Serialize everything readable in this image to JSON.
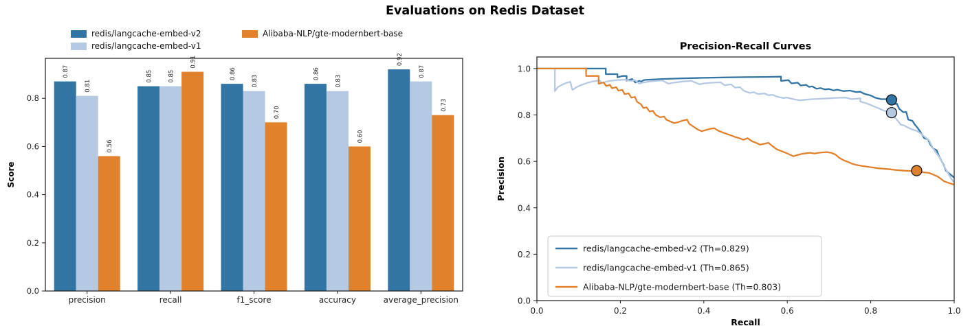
{
  "figure": {
    "title": "Evaluations on Redis Dataset",
    "background": "#ffffff"
  },
  "palette": {
    "v2_blue": "#3274A3",
    "v1_lightblue": "#B6C9E2",
    "gte_orange": "#E1812C",
    "axis_color": "#1a1a1a",
    "text_color": "#262626"
  },
  "fig_legend": {
    "items": [
      {
        "label": "redis/langcache-embed-v2",
        "color": "#3274A3"
      },
      {
        "label": "redis/langcache-embed-v1",
        "color": "#B6C9E2"
      },
      {
        "label": "Alibaba-NLP/gte-modernbert-base",
        "color": "#E1812C"
      }
    ]
  },
  "chart_data": [
    {
      "type": "bar",
      "ylabel": "Score",
      "categories": [
        "precision",
        "recall",
        "f1_score",
        "accuracy",
        "average_precision"
      ],
      "yticks": [
        0.0,
        0.2,
        0.4,
        0.6,
        0.8
      ],
      "ylim": [
        0,
        0.966
      ],
      "grid": false,
      "bar_labels_rotation": 90,
      "series": [
        {
          "name": "redis/langcache-embed-v2",
          "color": "#3274A3",
          "values": [
            0.87,
            0.85,
            0.86,
            0.86,
            0.92
          ]
        },
        {
          "name": "redis/langcache-embed-v1",
          "color": "#B6C9E2",
          "values": [
            0.81,
            0.85,
            0.83,
            0.83,
            0.87
          ]
        },
        {
          "name": "Alibaba-NLP/gte-modernbert-base",
          "color": "#E1812C",
          "values": [
            0.56,
            0.91,
            0.7,
            0.6,
            0.73
          ]
        }
      ]
    },
    {
      "type": "line",
      "title": "Precision-Recall Curves",
      "xlabel": "Recall",
      "ylabel": "Precision",
      "xticks": [
        0.0,
        0.2,
        0.4,
        0.6,
        0.8,
        1.0
      ],
      "yticks": [
        0.0,
        0.2,
        0.4,
        0.6,
        0.8,
        1.0
      ],
      "xlim": [
        0,
        1
      ],
      "ylim": [
        0,
        1.05
      ],
      "grid": false,
      "legend_position": "lower left",
      "series": [
        {
          "name": "redis/langcache-embed-v2",
          "legend": "redis/langcache-embed-v2 (Th=0.829)",
          "threshold": 0.829,
          "color": "#3274A3",
          "marker_point": [
            0.85,
            0.865
          ],
          "points": [
            [
              0,
              1.0
            ],
            [
              0.165,
              1.0
            ],
            [
              0.165,
              0.976
            ],
            [
              0.193,
              0.976
            ],
            [
              0.193,
              0.962
            ],
            [
              0.205,
              0.968
            ],
            [
              0.215,
              0.968
            ],
            [
              0.215,
              0.948
            ],
            [
              0.228,
              0.955
            ],
            [
              0.236,
              0.94
            ],
            [
              0.245,
              0.947
            ],
            [
              0.25,
              0.944
            ],
            [
              0.257,
              0.951
            ],
            [
              0.3,
              0.955
            ],
            [
              0.35,
              0.958
            ],
            [
              0.4,
              0.96
            ],
            [
              0.45,
              0.962
            ],
            [
              0.5,
              0.963
            ],
            [
              0.55,
              0.964
            ],
            [
              0.585,
              0.965
            ],
            [
              0.585,
              0.947
            ],
            [
              0.603,
              0.95
            ],
            [
              0.61,
              0.936
            ],
            [
              0.625,
              0.939
            ],
            [
              0.632,
              0.927
            ],
            [
              0.645,
              0.93
            ],
            [
              0.652,
              0.921
            ],
            [
              0.66,
              0.923
            ],
            [
              0.67,
              0.913
            ],
            [
              0.68,
              0.916
            ],
            [
              0.69,
              0.91
            ],
            [
              0.7,
              0.912
            ],
            [
              0.71,
              0.906
            ],
            [
              0.72,
              0.909
            ],
            [
              0.735,
              0.903
            ],
            [
              0.75,
              0.905
            ],
            [
              0.765,
              0.899
            ],
            [
              0.775,
              0.9
            ],
            [
              0.785,
              0.891
            ],
            [
              0.8,
              0.884
            ],
            [
              0.81,
              0.875
            ],
            [
              0.825,
              0.868
            ],
            [
              0.84,
              0.868
            ],
            [
              0.85,
              0.862
            ],
            [
              0.857,
              0.847
            ],
            [
              0.863,
              0.848
            ],
            [
              0.868,
              0.827
            ],
            [
              0.878,
              0.812
            ],
            [
              0.885,
              0.813
            ],
            [
              0.89,
              0.78
            ],
            [
              0.9,
              0.775
            ],
            [
              0.905,
              0.76
            ],
            [
              0.912,
              0.745
            ],
            [
              0.92,
              0.725
            ],
            [
              0.928,
              0.7
            ],
            [
              0.937,
              0.695
            ],
            [
              0.943,
              0.672
            ],
            [
              0.95,
              0.655
            ],
            [
              0.958,
              0.648
            ],
            [
              0.963,
              0.625
            ],
            [
              0.97,
              0.6
            ],
            [
              0.975,
              0.585
            ],
            [
              0.98,
              0.56
            ],
            [
              0.99,
              0.545
            ],
            [
              1.0,
              0.53
            ]
          ]
        },
        {
          "name": "redis/langcache-embed-v1",
          "legend": "redis/langcache-embed-v1 (Th=0.865)",
          "threshold": 0.865,
          "color": "#B6C9E2",
          "marker_point": [
            0.85,
            0.81
          ],
          "points": [
            [
              0,
              1.0
            ],
            [
              0.043,
              1.0
            ],
            [
              0.043,
              0.903
            ],
            [
              0.05,
              0.92
            ],
            [
              0.06,
              0.93
            ],
            [
              0.07,
              0.938
            ],
            [
              0.08,
              0.943
            ],
            [
              0.085,
              0.908
            ],
            [
              0.095,
              0.92
            ],
            [
              0.105,
              0.928
            ],
            [
              0.12,
              0.938
            ],
            [
              0.135,
              0.945
            ],
            [
              0.15,
              0.949
            ],
            [
              0.155,
              0.938
            ],
            [
              0.165,
              0.943
            ],
            [
              0.175,
              0.947
            ],
            [
              0.19,
              0.95
            ],
            [
              0.21,
              0.952
            ],
            [
              0.225,
              0.947
            ],
            [
              0.235,
              0.95
            ],
            [
              0.245,
              0.935
            ],
            [
              0.255,
              0.94
            ],
            [
              0.27,
              0.944
            ],
            [
              0.285,
              0.947
            ],
            [
              0.3,
              0.949
            ],
            [
              0.315,
              0.935
            ],
            [
              0.33,
              0.94
            ],
            [
              0.35,
              0.944
            ],
            [
              0.37,
              0.947
            ],
            [
              0.39,
              0.932
            ],
            [
              0.4,
              0.936
            ],
            [
              0.42,
              0.939
            ],
            [
              0.44,
              0.941
            ],
            [
              0.45,
              0.928
            ],
            [
              0.465,
              0.932
            ],
            [
              0.475,
              0.918
            ],
            [
              0.487,
              0.92
            ],
            [
              0.495,
              0.905
            ],
            [
              0.51,
              0.895
            ],
            [
              0.52,
              0.898
            ],
            [
              0.53,
              0.89
            ],
            [
              0.545,
              0.893
            ],
            [
              0.555,
              0.885
            ],
            [
              0.565,
              0.887
            ],
            [
              0.575,
              0.879
            ],
            [
              0.59,
              0.873
            ],
            [
              0.6,
              0.875
            ],
            [
              0.615,
              0.868
            ],
            [
              0.63,
              0.863
            ],
            [
              0.645,
              0.866
            ],
            [
              0.66,
              0.868
            ],
            [
              0.68,
              0.87
            ],
            [
              0.7,
              0.872
            ],
            [
              0.72,
              0.874
            ],
            [
              0.74,
              0.875
            ],
            [
              0.755,
              0.868
            ],
            [
              0.765,
              0.87
            ],
            [
              0.775,
              0.872
            ],
            [
              0.775,
              0.858
            ],
            [
              0.79,
              0.85
            ],
            [
              0.8,
              0.843
            ],
            [
              0.81,
              0.835
            ],
            [
              0.82,
              0.828
            ],
            [
              0.83,
              0.82
            ],
            [
              0.84,
              0.815
            ],
            [
              0.85,
              0.81
            ],
            [
              0.857,
              0.79
            ],
            [
              0.865,
              0.775
            ],
            [
              0.872,
              0.758
            ],
            [
              0.88,
              0.755
            ],
            [
              0.89,
              0.745
            ],
            [
              0.9,
              0.737
            ],
            [
              0.91,
              0.732
            ],
            [
              0.92,
              0.72
            ],
            [
              0.93,
              0.705
            ],
            [
              0.94,
              0.69
            ],
            [
              0.947,
              0.665
            ],
            [
              0.955,
              0.64
            ],
            [
              0.962,
              0.625
            ],
            [
              0.97,
              0.6
            ],
            [
              0.977,
              0.575
            ],
            [
              0.985,
              0.55
            ],
            [
              0.993,
              0.525
            ],
            [
              1.0,
              0.51
            ]
          ]
        },
        {
          "name": "Alibaba-NLP/gte-modernbert-base",
          "legend": "Alibaba-NLP/gte-modernbert-base (Th=0.803)",
          "threshold": 0.803,
          "color": "#E1812C",
          "marker_point": [
            0.91,
            0.56
          ],
          "points": [
            [
              0,
              1.0
            ],
            [
              0.118,
              1.0
            ],
            [
              0.118,
              0.968
            ],
            [
              0.148,
              0.968
            ],
            [
              0.148,
              0.935
            ],
            [
              0.16,
              0.94
            ],
            [
              0.166,
              0.925
            ],
            [
              0.175,
              0.93
            ],
            [
              0.18,
              0.915
            ],
            [
              0.19,
              0.92
            ],
            [
              0.195,
              0.905
            ],
            [
              0.205,
              0.908
            ],
            [
              0.21,
              0.89
            ],
            [
              0.22,
              0.893
            ],
            [
              0.226,
              0.875
            ],
            [
              0.235,
              0.878
            ],
            [
              0.24,
              0.857
            ],
            [
              0.25,
              0.845
            ],
            [
              0.255,
              0.83
            ],
            [
              0.263,
              0.833
            ],
            [
              0.27,
              0.815
            ],
            [
              0.278,
              0.818
            ],
            [
              0.285,
              0.8
            ],
            [
              0.295,
              0.79
            ],
            [
              0.305,
              0.793
            ],
            [
              0.31,
              0.78
            ],
            [
              0.32,
              0.772
            ],
            [
              0.33,
              0.765
            ],
            [
              0.34,
              0.77
            ],
            [
              0.35,
              0.776
            ],
            [
              0.36,
              0.78
            ],
            [
              0.365,
              0.762
            ],
            [
              0.375,
              0.75
            ],
            [
              0.385,
              0.738
            ],
            [
              0.395,
              0.73
            ],
            [
              0.405,
              0.735
            ],
            [
              0.415,
              0.74
            ],
            [
              0.425,
              0.743
            ],
            [
              0.435,
              0.732
            ],
            [
              0.445,
              0.725
            ],
            [
              0.455,
              0.718
            ],
            [
              0.465,
              0.712
            ],
            [
              0.475,
              0.705
            ],
            [
              0.485,
              0.7
            ],
            [
              0.495,
              0.693
            ],
            [
              0.505,
              0.7
            ],
            [
              0.515,
              0.687
            ],
            [
              0.525,
              0.68
            ],
            [
              0.535,
              0.672
            ],
            [
              0.545,
              0.676
            ],
            [
              0.555,
              0.68
            ],
            [
              0.565,
              0.665
            ],
            [
              0.575,
              0.652
            ],
            [
              0.585,
              0.645
            ],
            [
              0.595,
              0.638
            ],
            [
              0.605,
              0.63
            ],
            [
              0.615,
              0.622
            ],
            [
              0.625,
              0.628
            ],
            [
              0.635,
              0.632
            ],
            [
              0.645,
              0.635
            ],
            [
              0.655,
              0.637
            ],
            [
              0.665,
              0.634
            ],
            [
              0.675,
              0.637
            ],
            [
              0.685,
              0.639
            ],
            [
              0.695,
              0.64
            ],
            [
              0.705,
              0.637
            ],
            [
              0.715,
              0.63
            ],
            [
              0.725,
              0.615
            ],
            [
              0.735,
              0.605
            ],
            [
              0.745,
              0.598
            ],
            [
              0.755,
              0.59
            ],
            [
              0.765,
              0.585
            ],
            [
              0.78,
              0.58
            ],
            [
              0.8,
              0.575
            ],
            [
              0.82,
              0.57
            ],
            [
              0.84,
              0.567
            ],
            [
              0.86,
              0.563
            ],
            [
              0.88,
              0.56
            ],
            [
              0.9,
              0.558
            ],
            [
              0.912,
              0.558
            ],
            [
              0.925,
              0.553
            ],
            [
              0.94,
              0.55
            ],
            [
              0.95,
              0.543
            ],
            [
              0.96,
              0.535
            ],
            [
              0.968,
              0.525
            ],
            [
              0.975,
              0.515
            ],
            [
              0.985,
              0.508
            ],
            [
              1.0,
              0.5
            ]
          ]
        }
      ]
    }
  ]
}
